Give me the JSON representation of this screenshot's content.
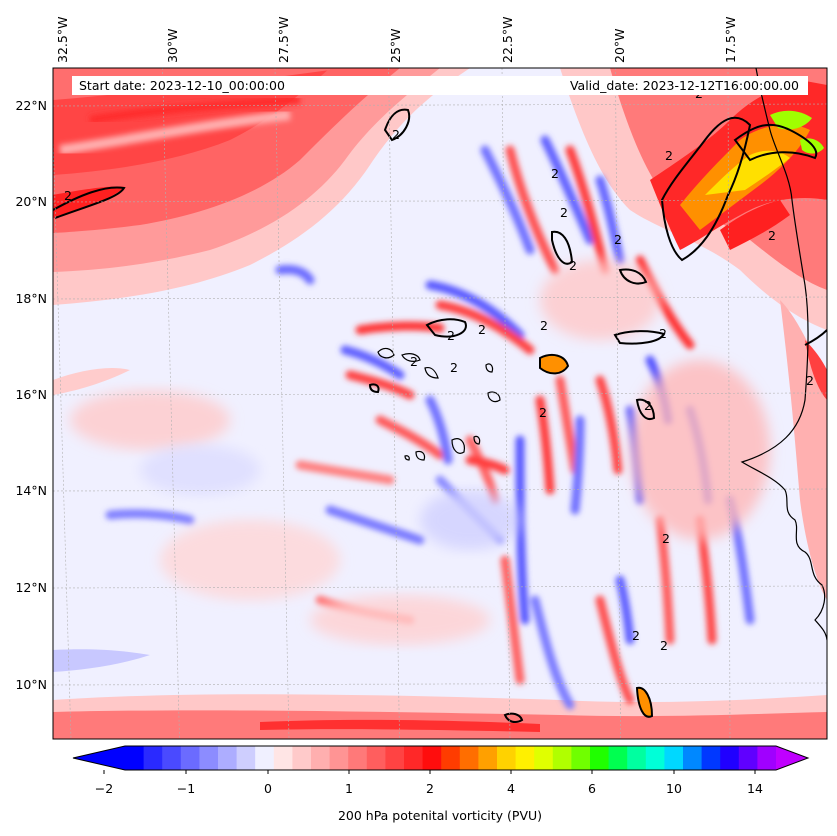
{
  "map": {
    "start_label": "Start date: 2023-12-10_00:00:00",
    "valid_label": "Valid_date: 2023-12-12T16:00:00.00",
    "lon_labels": [
      "32.5°W",
      "30°W",
      "27.5°W",
      "25°W",
      "22.5°W",
      "20°W",
      "17.5°W"
    ],
    "lat_labels": [
      "22°N",
      "20°N",
      "18°N",
      "16°N",
      "14°N",
      "12°N",
      "10°N"
    ],
    "contour_label": "2",
    "colors": {
      "neg_strong": "#0000ff",
      "neg_light": "#c8c8ff",
      "background": "#f0f0ff",
      "pos_light": "#ffc8c8",
      "pos_mid": "#ff6464",
      "pos_strong": "#ff2020",
      "orange": "#ff9000",
      "yellow": "#ffe000",
      "green": "#a0ff00"
    }
  },
  "colorbar": {
    "title": "200 hPa potenital vorticity (PVU)",
    "tick_labels": [
      "−2",
      "−1",
      "0",
      "1",
      "2",
      "4",
      "6",
      "10",
      "14"
    ],
    "colors": [
      "#0000ff",
      "#2a2aff",
      "#4a4aff",
      "#6b6bff",
      "#8c8cff",
      "#adadff",
      "#cecefe",
      "#f0f0ff",
      "#ffe5e5",
      "#ffcaca",
      "#ffafaf",
      "#ff9494",
      "#ff7979",
      "#ff5e5e",
      "#ff4343",
      "#ff2828",
      "#ff0d0d",
      "#ff3c00",
      "#ff6e00",
      "#ffa000",
      "#ffd200",
      "#fff000",
      "#e0ff00",
      "#b0ff00",
      "#70ff00",
      "#20ff00",
      "#00ff50",
      "#00ffa0",
      "#00ffd8",
      "#00d8ff",
      "#0088ff",
      "#0038ff",
      "#2000ff",
      "#6000ff",
      "#a000ff"
    ]
  }
}
